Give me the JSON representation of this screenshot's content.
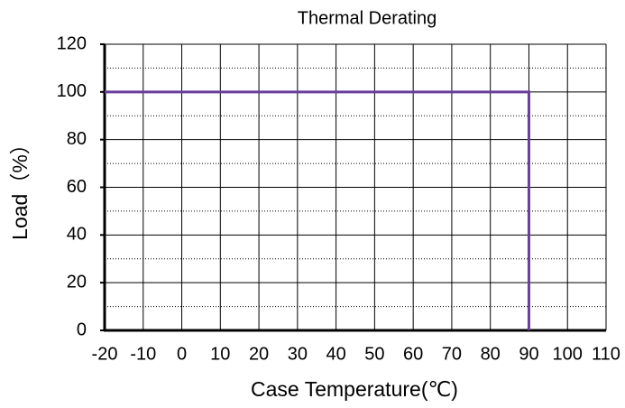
{
  "chart_data": {
    "type": "line",
    "title": "Thermal Derating",
    "xlabel": "Case Temperature(℃)",
    "ylabel": "Load（%）",
    "x": [
      -20,
      90,
      90
    ],
    "series": [
      {
        "color": "#6a3f9c",
        "values": [
          100,
          100,
          0
        ]
      }
    ],
    "xlim": [
      -20,
      110
    ],
    "xticks": [
      -20,
      -10,
      0,
      10,
      20,
      30,
      40,
      50,
      60,
      70,
      80,
      90,
      100,
      110
    ],
    "ylim": [
      0,
      120
    ],
    "yticks": [
      0,
      20,
      40,
      60,
      80,
      100,
      120
    ],
    "minor_yticks": [
      10,
      30,
      50,
      70,
      90,
      110
    ],
    "grid": true
  }
}
